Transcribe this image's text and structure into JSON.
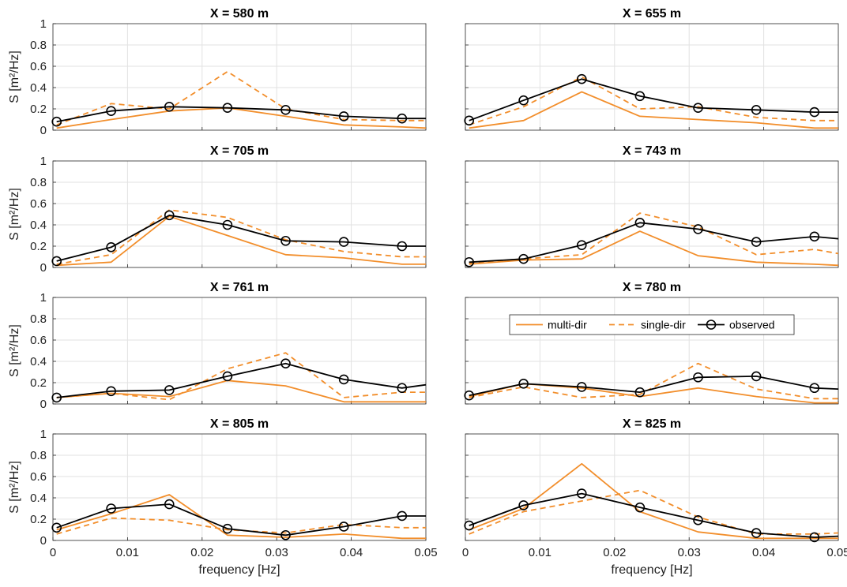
{
  "chart_data": {
    "type": "line",
    "xlabel": "frequency [Hz]",
    "ylabel": "S [m²/Hz]",
    "xlim": [
      0,
      0.05
    ],
    "ylim": [
      0,
      1
    ],
    "xticks": [
      "0",
      "0.01",
      "0.02",
      "0.03",
      "0.04",
      "0.05"
    ],
    "yticks": [
      "0",
      "0.2",
      "0.4",
      "0.6",
      "0.8",
      "1"
    ],
    "grid": true,
    "legend": {
      "location": "inside panel X = 780 m, top",
      "entries": [
        "multi-dir",
        "single-dir",
        "observed"
      ]
    },
    "colors": {
      "multi-dir": "#f28e2b",
      "single-dir": "#f28e2b",
      "observed": "#000000"
    },
    "x": [
      0.0005,
      0.0078,
      0.0156,
      0.0234,
      0.0312,
      0.039,
      0.0468,
      0.05
    ],
    "panels": [
      {
        "title": "X = 580 m",
        "series": [
          {
            "name": "multi-dir",
            "values": [
              0.02,
              0.1,
              0.18,
              0.21,
              0.13,
              0.05,
              0.03,
              0.02
            ]
          },
          {
            "name": "single-dir",
            "values": [
              0.05,
              0.25,
              0.2,
              0.55,
              0.2,
              0.1,
              0.09,
              0.09
            ]
          },
          {
            "name": "observed",
            "values": [
              0.08,
              0.18,
              0.22,
              0.21,
              0.19,
              0.13,
              0.11,
              0.11
            ]
          }
        ]
      },
      {
        "title": "X = 655 m",
        "series": [
          {
            "name": "multi-dir",
            "values": [
              0.02,
              0.09,
              0.36,
              0.13,
              0.1,
              0.07,
              0.02,
              0.02
            ]
          },
          {
            "name": "single-dir",
            "values": [
              0.05,
              0.22,
              0.5,
              0.2,
              0.22,
              0.12,
              0.09,
              0.09
            ]
          },
          {
            "name": "observed",
            "values": [
              0.09,
              0.28,
              0.48,
              0.32,
              0.21,
              0.19,
              0.17,
              0.17
            ]
          }
        ]
      },
      {
        "title": "X = 705 m",
        "series": [
          {
            "name": "multi-dir",
            "values": [
              0.02,
              0.05,
              0.48,
              0.3,
              0.12,
              0.09,
              0.03,
              0.03
            ]
          },
          {
            "name": "single-dir",
            "values": [
              0.03,
              0.12,
              0.54,
              0.47,
              0.26,
              0.15,
              0.1,
              0.1
            ]
          },
          {
            "name": "observed",
            "values": [
              0.06,
              0.19,
              0.49,
              0.4,
              0.25,
              0.24,
              0.2,
              0.2
            ]
          }
        ]
      },
      {
        "title": "X = 743 m",
        "series": [
          {
            "name": "multi-dir",
            "values": [
              0.03,
              0.07,
              0.08,
              0.34,
              0.11,
              0.05,
              0.03,
              0.02
            ]
          },
          {
            "name": "single-dir",
            "values": [
              0.04,
              0.08,
              0.12,
              0.51,
              0.38,
              0.12,
              0.17,
              0.13
            ]
          },
          {
            "name": "observed",
            "values": [
              0.05,
              0.08,
              0.21,
              0.42,
              0.36,
              0.24,
              0.29,
              0.27
            ]
          }
        ]
      },
      {
        "title": "X = 761 m",
        "series": [
          {
            "name": "multi-dir",
            "values": [
              0.06,
              0.1,
              0.07,
              0.22,
              0.17,
              0.02,
              0.02,
              0.02
            ]
          },
          {
            "name": "single-dir",
            "values": [
              0.06,
              0.1,
              0.04,
              0.33,
              0.48,
              0.06,
              0.11,
              0.11
            ]
          },
          {
            "name": "observed",
            "values": [
              0.06,
              0.12,
              0.13,
              0.26,
              0.38,
              0.23,
              0.15,
              0.18
            ]
          }
        ]
      },
      {
        "title": "X = 780 m",
        "series": [
          {
            "name": "multi-dir",
            "values": [
              0.07,
              0.19,
              0.15,
              0.07,
              0.15,
              0.07,
              0.01,
              0.01
            ]
          },
          {
            "name": "single-dir",
            "values": [
              0.06,
              0.16,
              0.06,
              0.09,
              0.38,
              0.14,
              0.05,
              0.05
            ]
          },
          {
            "name": "observed",
            "values": [
              0.08,
              0.19,
              0.16,
              0.11,
              0.25,
              0.26,
              0.15,
              0.14
            ]
          }
        ]
      },
      {
        "title": "X = 805 m",
        "series": [
          {
            "name": "multi-dir",
            "values": [
              0.1,
              0.25,
              0.43,
              0.05,
              0.03,
              0.06,
              0.02,
              0.02
            ]
          },
          {
            "name": "single-dir",
            "values": [
              0.06,
              0.21,
              0.19,
              0.1,
              0.07,
              0.15,
              0.12,
              0.12
            ]
          },
          {
            "name": "observed",
            "values": [
              0.12,
              0.3,
              0.34,
              0.11,
              0.05,
              0.13,
              0.23,
              0.23
            ]
          }
        ]
      },
      {
        "title": "X = 825 m",
        "series": [
          {
            "name": "multi-dir",
            "values": [
              0.1,
              0.3,
              0.72,
              0.27,
              0.08,
              0.02,
              0.02,
              0.02
            ]
          },
          {
            "name": "single-dir",
            "values": [
              0.06,
              0.27,
              0.37,
              0.47,
              0.22,
              0.06,
              0.06,
              0.07
            ]
          },
          {
            "name": "observed",
            "values": [
              0.14,
              0.33,
              0.44,
              0.31,
              0.19,
              0.07,
              0.03,
              0.04
            ]
          }
        ]
      }
    ]
  }
}
